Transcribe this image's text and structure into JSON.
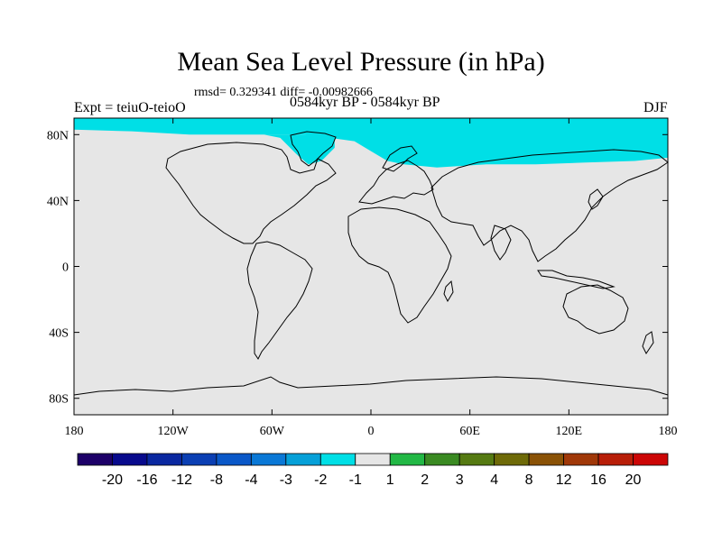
{
  "title": "Mean Sea Level Pressure (in hPa)",
  "stats_line": "rmsd= 0.329341 diff= -0.00982666",
  "expt_label": "Expt = teiuO-teioO",
  "period_label": "0584kyr BP - 0584kyr BP",
  "season_label": "DJF",
  "colors": {
    "background": "#e6e6e6",
    "anomaly": "#00dfe6",
    "land_outline": "#000000"
  },
  "map": {
    "projection": "equirectangular",
    "lon_range": [
      -180,
      180
    ],
    "lat_range": [
      -90,
      90
    ],
    "x_ticks": [
      {
        "lon": -180,
        "label": "180"
      },
      {
        "lon": -120,
        "label": "120W"
      },
      {
        "lon": -60,
        "label": "60W"
      },
      {
        "lon": 0,
        "label": "0"
      },
      {
        "lon": 60,
        "label": "60E"
      },
      {
        "lon": 120,
        "label": "120E"
      },
      {
        "lon": 180,
        "label": "180"
      }
    ],
    "y_ticks": [
      {
        "lat": 80,
        "label": "80N"
      },
      {
        "lat": 40,
        "label": "40N"
      },
      {
        "lat": 0,
        "label": "0"
      },
      {
        "lat": -40,
        "label": "40S"
      },
      {
        "lat": -80,
        "label": "80S"
      }
    ],
    "anomaly_region": {
      "level": "-2 to -1 hPa",
      "description": "Arctic / North Atlantic band",
      "lon_lat_polygon": [
        [
          -180,
          83
        ],
        [
          -145,
          82
        ],
        [
          -110,
          80
        ],
        [
          -75,
          80
        ],
        [
          -40,
          80
        ],
        [
          -25,
          78
        ],
        [
          -10,
          76
        ],
        [
          0,
          70
        ],
        [
          10,
          64
        ],
        [
          20,
          62
        ],
        [
          40,
          60
        ],
        [
          70,
          62
        ],
        [
          100,
          62
        ],
        [
          130,
          63
        ],
        [
          160,
          64
        ],
        [
          180,
          66
        ],
        [
          180,
          90
        ],
        [
          -180,
          90
        ]
      ],
      "lon_lat_polygon_2": [
        [
          -65,
          80
        ],
        [
          -55,
          78
        ],
        [
          -45,
          68
        ],
        [
          -38,
          62
        ],
        [
          -30,
          64
        ],
        [
          -22,
          72
        ],
        [
          -22,
          80
        ]
      ]
    }
  },
  "colorbar": {
    "colors": [
      "#1d0068",
      "#080a8c",
      "#0a28a0",
      "#0b3fb3",
      "#0a58c8",
      "#0a78d6",
      "#06a0d8",
      "#00dfe6",
      "#e6e6e6",
      "#22b845",
      "#3a8a22",
      "#557a12",
      "#6e6a08",
      "#8a5206",
      "#a03808",
      "#b81e08",
      "#cc0606"
    ],
    "labels": [
      "-20",
      "-16",
      "-12",
      "-8",
      "-4",
      "-3",
      "-2",
      "-1",
      "1",
      "2",
      "3",
      "4",
      "8",
      "12",
      "16",
      "20"
    ]
  }
}
